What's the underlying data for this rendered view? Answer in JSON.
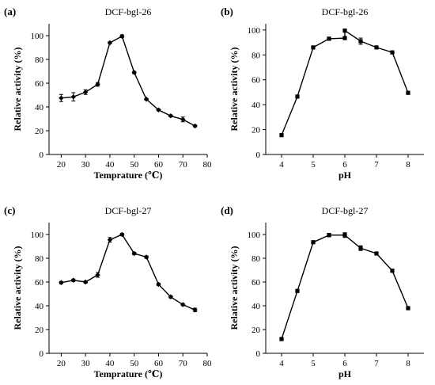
{
  "chart_data": [
    {
      "type": "line",
      "panel": "(a)",
      "title": "DCF-bgl-26",
      "xlabel": "Temprature (℃)",
      "ylabel": "Relative activity (%)",
      "xlim": [
        15,
        80
      ],
      "ylim": [
        0,
        110
      ],
      "xticks": [
        20,
        30,
        40,
        50,
        60,
        70,
        80
      ],
      "yticks": [
        0,
        20,
        40,
        60,
        80,
        100
      ],
      "grid": false,
      "marker": "diamond",
      "x": [
        20,
        25,
        30,
        35,
        40,
        45,
        50,
        55,
        60,
        65,
        70,
        75
      ],
      "y": [
        47.5,
        48.5,
        52.5,
        59,
        94,
        99.5,
        69,
        46.5,
        37.5,
        32.5,
        29.5,
        24
      ],
      "err": [
        3,
        3.5,
        2,
        1.5,
        0.8,
        1.2,
        1,
        0.8,
        0.8,
        0.8,
        2,
        0.8
      ]
    },
    {
      "type": "line",
      "panel": "(b)",
      "title": "DCF-bgl-26",
      "xlabel": "pH",
      "ylabel": "Relative activity (%)",
      "xlim": [
        3.5,
        8.5
      ],
      "ylim": [
        0,
        105
      ],
      "xticks": [
        4,
        5,
        6,
        7,
        8
      ],
      "yticks": [
        0,
        20,
        40,
        60,
        80,
        100
      ],
      "grid": false,
      "marker": "square",
      "x": [
        4,
        4.5,
        5,
        5.5,
        6,
        6,
        6.5,
        7,
        7.5,
        8
      ],
      "y": [
        15.5,
        46.5,
        86,
        93,
        93.5,
        99.5,
        91,
        86,
        82,
        49.5
      ],
      "err": [
        0.5,
        0.8,
        1,
        0.8,
        0.8,
        0.8,
        2.5,
        1,
        1,
        0.8
      ]
    },
    {
      "type": "line",
      "panel": "(c)",
      "title": "DCF-bgl-27",
      "xlabel": "Temprature (℃)",
      "ylabel": "Relative activity (%)",
      "xlim": [
        15,
        80
      ],
      "ylim": [
        0,
        110
      ],
      "xticks": [
        20,
        30,
        40,
        50,
        60,
        70,
        80
      ],
      "yticks": [
        0,
        20,
        40,
        60,
        80,
        100
      ],
      "grid": false,
      "marker": "diamond",
      "x": [
        20,
        25,
        30,
        35,
        40,
        45,
        50,
        55,
        60,
        65,
        70,
        75
      ],
      "y": [
        59.5,
        61.5,
        60,
        66,
        95.5,
        100,
        84,
        81,
        58,
        47.5,
        41,
        36.5
      ],
      "err": [
        1,
        1,
        1,
        2,
        2,
        1,
        1,
        1,
        1,
        1,
        1,
        1.5
      ]
    },
    {
      "type": "line",
      "panel": "(d)",
      "title": "DCF-bgl-27",
      "xlabel": "pH",
      "ylabel": "Relative activity (%)",
      "xlim": [
        3.5,
        8.5
      ],
      "ylim": [
        0,
        110
      ],
      "xticks": [
        4,
        5,
        6,
        7,
        8
      ],
      "yticks": [
        0,
        20,
        40,
        60,
        80,
        100
      ],
      "grid": false,
      "marker": "square",
      "x": [
        4,
        4.5,
        5,
        5.5,
        6,
        6.5,
        7,
        7.5,
        8
      ],
      "y": [
        12,
        52.5,
        93.5,
        99.5,
        99.5,
        88.5,
        84,
        69.5,
        38
      ],
      "err": [
        0.5,
        0.8,
        1,
        1.5,
        2,
        2,
        0.8,
        0.8,
        0.8
      ]
    }
  ]
}
